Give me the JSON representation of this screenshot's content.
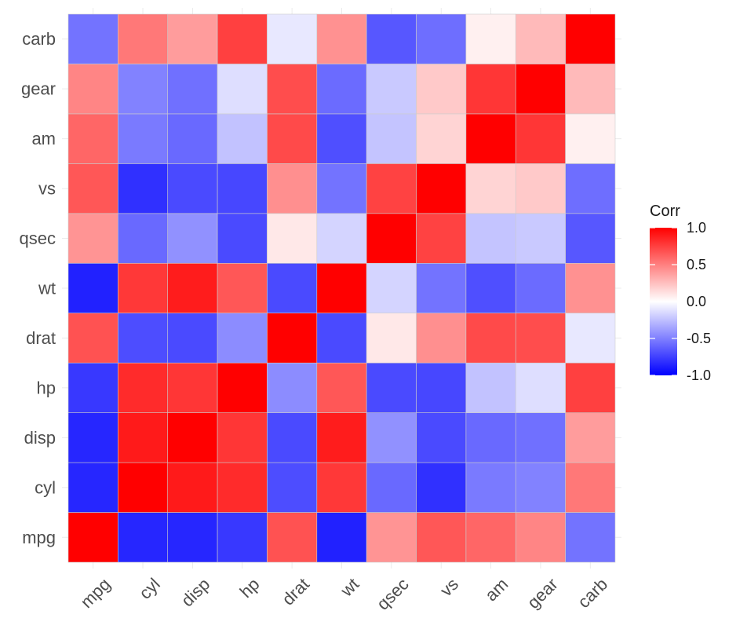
{
  "chart_data": {
    "type": "heatmap",
    "variables": [
      "mpg",
      "cyl",
      "disp",
      "hp",
      "drat",
      "wt",
      "qsec",
      "vs",
      "am",
      "gear",
      "carb"
    ],
    "x_categories": [
      "mpg",
      "cyl",
      "disp",
      "hp",
      "drat",
      "wt",
      "qsec",
      "vs",
      "am",
      "gear",
      "carb"
    ],
    "y_categories_bottom_to_top": [
      "mpg",
      "cyl",
      "disp",
      "hp",
      "drat",
      "wt",
      "qsec",
      "vs",
      "am",
      "gear",
      "carb"
    ],
    "matrix": [
      [
        1.0,
        -0.85,
        -0.85,
        -0.78,
        0.68,
        -0.87,
        0.42,
        0.66,
        0.6,
        0.48,
        -0.55
      ],
      [
        -0.85,
        1.0,
        0.9,
        0.83,
        -0.7,
        0.78,
        -0.59,
        -0.81,
        -0.52,
        -0.49,
        0.53
      ],
      [
        -0.85,
        0.9,
        1.0,
        0.79,
        -0.71,
        0.89,
        -0.43,
        -0.71,
        -0.59,
        -0.56,
        0.39
      ],
      [
        -0.78,
        0.83,
        0.79,
        1.0,
        -0.45,
        0.66,
        -0.71,
        -0.72,
        -0.24,
        -0.13,
        0.75
      ],
      [
        0.68,
        -0.7,
        -0.71,
        -0.45,
        1.0,
        -0.71,
        0.09,
        0.44,
        0.71,
        0.7,
        -0.09
      ],
      [
        -0.87,
        0.78,
        0.89,
        0.66,
        -0.71,
        1.0,
        -0.17,
        -0.55,
        -0.69,
        -0.58,
        0.43
      ],
      [
        0.42,
        -0.59,
        -0.43,
        -0.71,
        0.09,
        -0.17,
        1.0,
        0.74,
        -0.23,
        -0.21,
        -0.66
      ],
      [
        0.66,
        -0.81,
        -0.71,
        -0.72,
        0.44,
        -0.55,
        0.74,
        1.0,
        0.17,
        0.21,
        -0.57
      ],
      [
        0.6,
        -0.52,
        -0.59,
        -0.24,
        0.71,
        -0.69,
        -0.23,
        0.17,
        1.0,
        0.79,
        0.06
      ],
      [
        0.48,
        -0.49,
        -0.56,
        -0.13,
        0.7,
        -0.58,
        -0.21,
        0.21,
        0.79,
        1.0,
        0.27
      ],
      [
        -0.55,
        0.53,
        0.39,
        0.75,
        -0.09,
        0.43,
        -0.66,
        -0.57,
        0.06,
        0.27,
        1.0
      ]
    ],
    "color_scale": {
      "low": "#0000FF",
      "mid": "#FFFFFF",
      "high": "#FF0000",
      "limits": [
        -1,
        1
      ]
    },
    "legend": {
      "title": "Corr",
      "placement": "right",
      "breaks": [
        1.0,
        0.5,
        0.0,
        -0.5,
        -1.0
      ],
      "labels": [
        "1.0",
        "0.5",
        "0.0",
        "-0.5",
        "-1.0"
      ]
    },
    "title": "",
    "xlabel": "",
    "ylabel": ""
  }
}
